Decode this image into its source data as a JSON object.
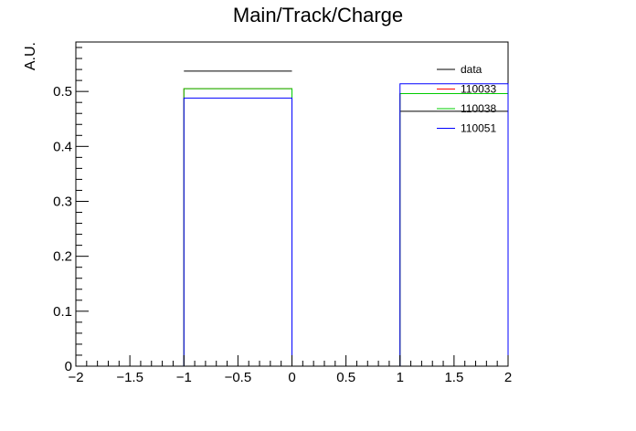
{
  "chart_data": {
    "type": "bar",
    "style": "step-histogram",
    "title": "Main/Track/Charge",
    "xlabel": "",
    "ylabel": "A.U.",
    "xlim": [
      -2,
      2
    ],
    "ylim": [
      0,
      0.59
    ],
    "x_ticks": [
      -2,
      -1.5,
      -1,
      -0.5,
      0,
      0.5,
      1,
      1.5,
      2
    ],
    "x_tick_labels": [
      "−2",
      "−1.5",
      "−1",
      "−0.5",
      "0",
      "0.5",
      "1",
      "1.5",
      "2"
    ],
    "y_ticks": [
      0,
      0.1,
      0.2,
      0.3,
      0.4,
      0.5
    ],
    "y_tick_labels": [
      "0",
      "0.1",
      "0.2",
      "0.3",
      "0.4",
      "0.5"
    ],
    "bin_edges": [
      -2,
      -1,
      0,
      1,
      2
    ],
    "legend_position": "top-right",
    "series": [
      {
        "name": "data",
        "color": "#000000",
        "values": [
          0,
          0.537,
          0,
          0.464
        ]
      },
      {
        "name": "110033",
        "color": "#ff0000",
        "values": [
          0,
          0.505,
          0,
          0.496
        ]
      },
      {
        "name": "110038",
        "color": "#00cc00",
        "values": [
          0,
          0.505,
          0,
          0.496
        ]
      },
      {
        "name": "110051",
        "color": "#0000ff",
        "values": [
          0,
          0.488,
          0,
          0.514
        ]
      }
    ]
  }
}
